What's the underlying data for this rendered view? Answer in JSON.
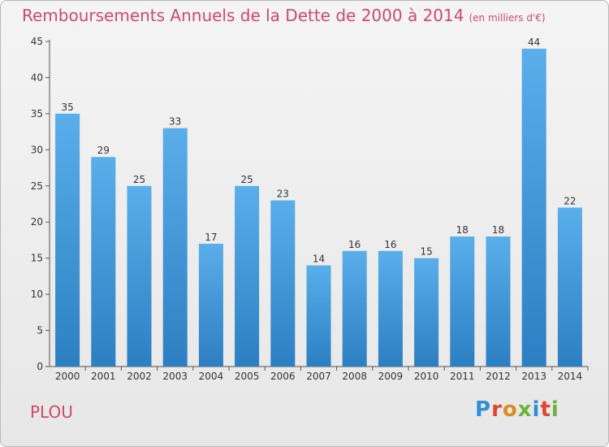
{
  "header": {
    "title": "Remboursements Annuels de la Dette de 2000 à 2014",
    "unit": "(en milliers d'€)"
  },
  "footer": {
    "place": "PLOU",
    "logo": "Proxiti"
  },
  "colors": {
    "title": "#d0486e",
    "bar_top": "#5aaeea",
    "bar_bottom": "#2c7fc2",
    "logo_letters": [
      "#2f8fd8",
      "#e0462f",
      "#e08a1e",
      "#69b43a",
      "#2f8fd8",
      "#e0462f",
      "#69b43a"
    ]
  },
  "chart_data": {
    "type": "bar",
    "categories": [
      "2000",
      "2001",
      "2002",
      "2003",
      "2004",
      "2005",
      "2006",
      "2007",
      "2008",
      "2009",
      "2010",
      "2011",
      "2012",
      "2013",
      "2014"
    ],
    "values": [
      35,
      29,
      25,
      33,
      17,
      25,
      23,
      14,
      16,
      16,
      15,
      18,
      18,
      44,
      22
    ],
    "title": "Remboursements Annuels de la Dette de 2000 à 2014",
    "xlabel": "",
    "ylabel": "",
    "ylim": [
      0,
      45
    ],
    "yticks": [
      0,
      5,
      10,
      15,
      20,
      25,
      30,
      35,
      40,
      45
    ],
    "grid": false,
    "legend": "none"
  }
}
